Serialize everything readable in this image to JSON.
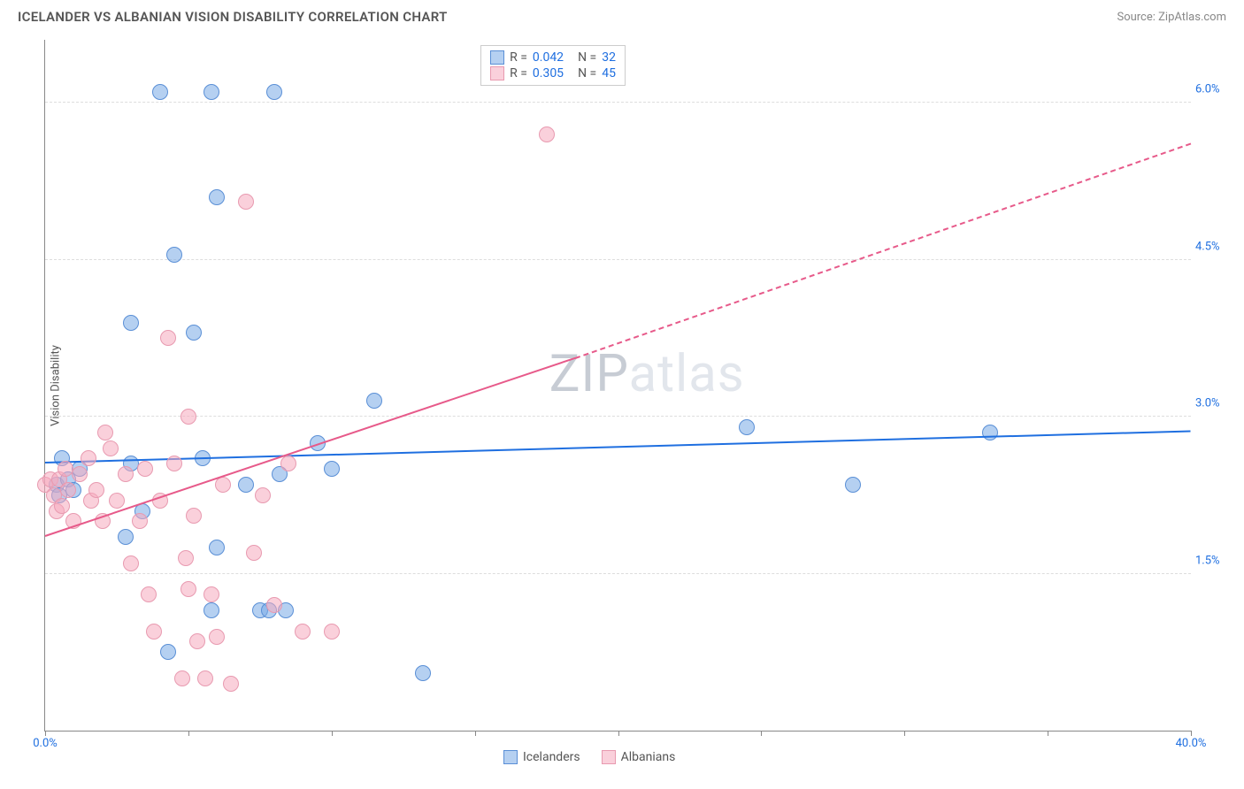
{
  "title": "ICELANDER VS ALBANIAN VISION DISABILITY CORRELATION CHART",
  "source": "Source: ZipAtlas.com",
  "ylabel": "Vision Disability",
  "watermark_parts": [
    "ZIP",
    "atlas"
  ],
  "colors": {
    "blue_fill": "rgba(120,170,230,0.55)",
    "blue_stroke": "#5a8fd6",
    "blue_line": "#1f6fe0",
    "blue_text": "#1f6fe0",
    "pink_fill": "rgba(245,170,190,0.55)",
    "pink_stroke": "#e89ab0",
    "pink_line": "#e75a8a",
    "pink_text": "#e75a8a",
    "grid": "#dddddd",
    "axis": "#888888",
    "watermark_dark": "#c7ccd4",
    "watermark_light": "#e2e6ec"
  },
  "chart": {
    "type": "scatter",
    "xlim": [
      0,
      40
    ],
    "ylim": [
      0,
      6.6
    ],
    "xtick_positions": [
      0,
      5,
      10,
      15,
      20,
      25,
      30,
      35,
      40
    ],
    "xtick_labels": {
      "0": "0.0%",
      "40": "40.0%"
    },
    "ytick_positions": [
      1.5,
      3.0,
      4.5,
      6.0
    ],
    "ytick_labels": [
      "1.5%",
      "3.0%",
      "4.5%",
      "6.0%"
    ],
    "point_radius": 9,
    "series": [
      {
        "name": "Icelanders",
        "color_key": "blue",
        "R": "0.042",
        "N": "32",
        "trend": {
          "x1": 0,
          "y1": 2.55,
          "x2": 40,
          "y2": 2.85,
          "style": "solid"
        },
        "points": [
          [
            0.4,
            2.35
          ],
          [
            0.5,
            2.25
          ],
          [
            0.6,
            2.6
          ],
          [
            0.8,
            2.4
          ],
          [
            1.0,
            2.3
          ],
          [
            1.2,
            2.5
          ],
          [
            2.8,
            1.85
          ],
          [
            3.0,
            2.55
          ],
          [
            3.0,
            3.9
          ],
          [
            3.4,
            2.1
          ],
          [
            4.0,
            6.1
          ],
          [
            4.3,
            0.75
          ],
          [
            4.5,
            4.55
          ],
          [
            5.2,
            3.8
          ],
          [
            5.5,
            2.6
          ],
          [
            5.8,
            6.1
          ],
          [
            5.8,
            1.15
          ],
          [
            6.0,
            5.1
          ],
          [
            6.0,
            1.75
          ],
          [
            7.0,
            2.35
          ],
          [
            7.5,
            1.15
          ],
          [
            7.8,
            1.15
          ],
          [
            8.0,
            6.1
          ],
          [
            8.2,
            2.45
          ],
          [
            8.4,
            1.15
          ],
          [
            9.5,
            2.75
          ],
          [
            10.0,
            2.5
          ],
          [
            11.5,
            3.15
          ],
          [
            13.2,
            0.55
          ],
          [
            24.5,
            2.9
          ],
          [
            28.2,
            2.35
          ],
          [
            33.0,
            2.85
          ]
        ]
      },
      {
        "name": "Albanians",
        "color_key": "pink",
        "R": "0.305",
        "N": "45",
        "trend": {
          "x1": 0,
          "y1": 1.85,
          "x2": 18.5,
          "y2": 3.55,
          "style": "solid"
        },
        "trend_ext": {
          "x1": 18.5,
          "y1": 3.55,
          "x2": 40,
          "y2": 5.6,
          "style": "dashed"
        },
        "points": [
          [
            0.0,
            2.35
          ],
          [
            0.2,
            2.4
          ],
          [
            0.3,
            2.25
          ],
          [
            0.4,
            2.1
          ],
          [
            0.5,
            2.4
          ],
          [
            0.6,
            2.15
          ],
          [
            0.7,
            2.5
          ],
          [
            0.8,
            2.3
          ],
          [
            1.0,
            2.0
          ],
          [
            1.2,
            2.45
          ],
          [
            1.5,
            2.6
          ],
          [
            1.6,
            2.2
          ],
          [
            1.8,
            2.3
          ],
          [
            2.0,
            2.0
          ],
          [
            2.1,
            2.85
          ],
          [
            2.3,
            2.7
          ],
          [
            2.5,
            2.2
          ],
          [
            2.8,
            2.45
          ],
          [
            3.0,
            1.6
          ],
          [
            3.3,
            2.0
          ],
          [
            3.5,
            2.5
          ],
          [
            3.6,
            1.3
          ],
          [
            3.8,
            0.95
          ],
          [
            4.0,
            2.2
          ],
          [
            4.3,
            3.75
          ],
          [
            4.5,
            2.55
          ],
          [
            4.8,
            0.5
          ],
          [
            4.9,
            1.65
          ],
          [
            5.0,
            1.35
          ],
          [
            5.0,
            3.0
          ],
          [
            5.2,
            2.05
          ],
          [
            5.3,
            0.85
          ],
          [
            5.6,
            0.5
          ],
          [
            5.8,
            1.3
          ],
          [
            6.0,
            0.9
          ],
          [
            6.2,
            2.35
          ],
          [
            6.5,
            0.45
          ],
          [
            7.0,
            5.05
          ],
          [
            7.3,
            1.7
          ],
          [
            7.6,
            2.25
          ],
          [
            8.0,
            1.2
          ],
          [
            8.5,
            2.55
          ],
          [
            9.0,
            0.95
          ],
          [
            10.0,
            0.95
          ],
          [
            17.5,
            5.7
          ]
        ]
      }
    ]
  },
  "legend_bottom": [
    "Icelanders",
    "Albanians"
  ]
}
